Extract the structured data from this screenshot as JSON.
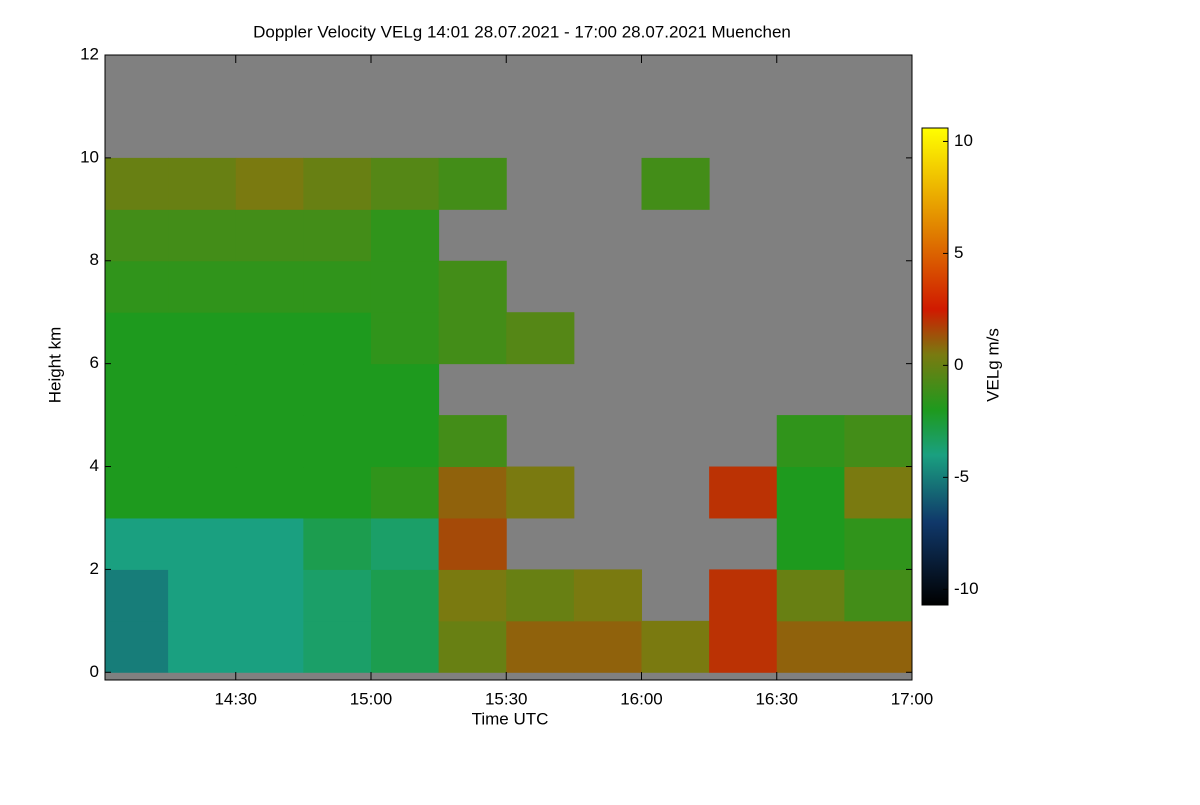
{
  "chart_data": {
    "type": "heatmap",
    "title": "Doppler Velocity VELg   14:01 28.07.2021 - 17:00 28.07.2021 Muenchen",
    "x_label": "Time UTC",
    "y_label": "Height km",
    "colorbar_label": "VELg m/s",
    "background": "#808080",
    "xlim": [
      841,
      1020
    ],
    "xticks": [
      {
        "value": 870,
        "label": "14:30"
      },
      {
        "value": 900,
        "label": "15:00"
      },
      {
        "value": 930,
        "label": "15:30"
      },
      {
        "value": 960,
        "label": "16:00"
      },
      {
        "value": 990,
        "label": "16:30"
      },
      {
        "value": 1020,
        "label": "17:00"
      }
    ],
    "ylim": [
      -0.15,
      12
    ],
    "yticks": [
      0,
      2,
      4,
      6,
      8,
      10,
      12
    ],
    "clim": [
      -10.7,
      10.6
    ],
    "cticks": [
      -10,
      -5,
      0,
      5,
      10
    ],
    "colorscale": [
      {
        "value": -10.7,
        "color": "#000000"
      },
      {
        "value": -7,
        "color": "#10386a"
      },
      {
        "value": -4,
        "color": "#1aa080"
      },
      {
        "value": -2,
        "color": "#1e9a1e"
      },
      {
        "value": 0.5,
        "color": "#7a7a10"
      },
      {
        "value": 2.5,
        "color": "#d01a00"
      },
      {
        "value": 6,
        "color": "#e08000"
      },
      {
        "value": 10.6,
        "color": "#ffff00"
      }
    ],
    "x_edges": [
      841,
      855,
      870,
      885,
      900,
      915,
      930,
      945,
      960,
      975,
      990,
      1005,
      1020
    ],
    "y_edges": [
      0,
      1,
      2,
      3,
      4,
      5,
      6,
      7,
      8,
      9,
      10,
      11,
      12
    ],
    "values": [
      [
        -5,
        -4,
        -4,
        -3.5,
        -3,
        0,
        1,
        1,
        0.5,
        2,
        1,
        1
      ],
      [
        -5,
        -4,
        -4,
        -3.5,
        -3,
        0.5,
        0,
        0.5,
        null,
        2,
        0,
        -1
      ],
      [
        -4,
        -4,
        -4,
        -3,
        -3.5,
        1.5,
        null,
        null,
        null,
        null,
        -2,
        -1.5
      ],
      [
        -2,
        -2,
        -2,
        -2,
        -1.5,
        1,
        0.5,
        null,
        null,
        2,
        -2,
        0.5
      ],
      [
        -2,
        -2,
        -2,
        -2,
        -2,
        -1,
        null,
        null,
        null,
        null,
        -1.5,
        -1
      ],
      [
        -2,
        -2,
        -2,
        -2,
        -2,
        null,
        null,
        null,
        null,
        null,
        null,
        null
      ],
      [
        -2,
        -2,
        -2,
        -2,
        -1.5,
        -1,
        -0.5,
        null,
        null,
        null,
        null,
        null
      ],
      [
        -1.5,
        -1.5,
        -1.5,
        -1.5,
        -1.5,
        -1,
        null,
        null,
        null,
        null,
        null,
        null
      ],
      [
        -1,
        -1,
        -1,
        -1,
        -1.5,
        null,
        null,
        null,
        null,
        null,
        null,
        null
      ],
      [
        0,
        0,
        0.5,
        0,
        -0.5,
        -1,
        null,
        null,
        -1,
        null,
        null,
        null
      ],
      [
        null,
        null,
        null,
        null,
        null,
        null,
        null,
        null,
        null,
        null,
        null,
        null
      ],
      [
        null,
        null,
        null,
        null,
        null,
        null,
        null,
        null,
        null,
        null,
        null,
        null
      ]
    ]
  }
}
